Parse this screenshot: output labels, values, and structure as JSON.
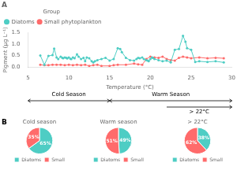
{
  "chart_data": [
    {
      "type": "line",
      "title": "A",
      "x_label": "Temperature (°C)",
      "y_label": "Pigment (μg L⁻¹)",
      "series": [
        {
          "name": "Diatoms",
          "color": "#4ECDC4",
          "x": [
            6.5,
            7.0,
            7.5,
            8.0,
            8.2,
            8.5,
            8.7,
            9.0,
            9.2,
            9.3,
            9.5,
            9.7,
            9.8,
            10.0,
            10.2,
            10.3,
            10.5,
            10.7,
            11.0,
            11.2,
            11.5,
            11.8,
            12.0,
            12.2,
            12.5,
            12.8,
            13.0,
            13.2,
            13.5,
            14.0,
            14.5,
            15.0,
            15.5,
            16.0,
            16.3,
            16.5,
            17.0,
            17.5,
            18.0,
            18.3,
            18.5,
            18.7,
            19.0,
            19.2,
            19.5,
            19.7,
            19.8,
            20.0,
            20.2,
            20.3,
            20.5,
            21.0,
            21.5,
            22.0,
            22.5,
            23.0,
            23.5,
            24.0,
            24.3,
            24.5,
            25.0,
            25.5,
            26.0,
            27.0,
            28.0,
            29.0
          ],
          "values": [
            0.5,
            0.1,
            0.48,
            0.52,
            0.8,
            0.42,
            0.35,
            0.45,
            0.4,
            0.38,
            0.42,
            0.4,
            0.37,
            0.42,
            0.36,
            0.35,
            0.42,
            0.38,
            0.55,
            0.45,
            0.35,
            0.4,
            0.25,
            0.42,
            0.38,
            0.25,
            0.2,
            0.25,
            0.3,
            0.35,
            0.4,
            0.28,
            0.35,
            0.82,
            0.78,
            0.65,
            0.4,
            0.3,
            0.28,
            0.35,
            0.4,
            0.38,
            0.42,
            0.35,
            0.3,
            0.28,
            0.25,
            0.35,
            0.42,
            0.4,
            0.35,
            0.3,
            0.25,
            0.28,
            0.2,
            0.75,
            0.78,
            1.35,
            1.1,
            0.82,
            0.75,
            0.22,
            0.25,
            0.22,
            0.25,
            0.2
          ]
        },
        {
          "name": "Small phytoplankton",
          "color": "#FF6B6B",
          "x": [
            6.5,
            7.0,
            7.5,
            8.0,
            8.5,
            9.0,
            9.5,
            10.0,
            10.5,
            11.0,
            11.5,
            12.0,
            12.5,
            13.0,
            13.5,
            14.0,
            15.0,
            15.5,
            16.0,
            17.0,
            18.0,
            18.5,
            19.0,
            19.5,
            20.0,
            20.5,
            21.0,
            21.5,
            22.0,
            22.5,
            23.0,
            23.5,
            24.0,
            24.5,
            25.0,
            26.0,
            27.0,
            28.0,
            29.0
          ],
          "values": [
            0.1,
            0.08,
            0.08,
            0.1,
            0.1,
            0.1,
            0.08,
            0.1,
            0.08,
            0.1,
            0.08,
            0.1,
            0.05,
            0.08,
            0.1,
            0.05,
            0.05,
            0.08,
            0.1,
            0.1,
            0.15,
            0.12,
            0.1,
            0.35,
            0.45,
            0.42,
            0.4,
            0.45,
            0.35,
            0.3,
            0.28,
            0.4,
            0.45,
            0.42,
            0.38,
            0.42,
            0.38,
            0.4,
            0.38
          ]
        }
      ],
      "xlim": [
        5,
        30
      ],
      "xticks": [
        5,
        10,
        15,
        20,
        25,
        30
      ],
      "ylim": [
        0,
        1.5
      ],
      "yticks": [
        {
          "value": 0,
          "label": "0.0"
        },
        0.5,
        {
          "value": 1,
          "label": "1.0"
        },
        1.5
      ],
      "grid": false,
      "legend": "upper left",
      "legend_title": "Group",
      "marker": "circle",
      "line_style": "solid",
      "annotations": [
        {
          "text": "Cold Season",
          "x": [
            5,
            15
          ],
          "marker": "double_arrow"
        },
        {
          "text": "Warm Season",
          "x": [
            15,
            30
          ],
          "marker": "double_arrow"
        },
        {
          "text": "> 22°C",
          "x": [
            22,
            30
          ],
          "marker": "arrow"
        }
      ]
    },
    {
      "type": "pie",
      "title": "Cold season",
      "categories": [
        "Diatoms",
        "Small"
      ],
      "values": [
        65,
        35
      ],
      "value_labels": [
        "65%",
        "35%"
      ],
      "colors": [
        "#4ECDC4",
        "#FF6B6B"
      ],
      "data_labels": true,
      "legend": "bottom",
      "annotations": [
        {
          "text": "B"
        }
      ]
    },
    {
      "type": "pie",
      "title": "Warm season",
      "categories": [
        "Diatoms",
        "Small"
      ],
      "values": [
        49,
        51
      ],
      "value_labels": [
        "49%",
        "51%"
      ],
      "colors": [
        "#4ECDC4",
        "#FF6B6B"
      ],
      "data_labels": true,
      "legend": "bottom"
    },
    {
      "type": "pie",
      "title": "> 22°C",
      "categories": [
        "Diatoms",
        "Small"
      ],
      "values": [
        38,
        62
      ],
      "value_labels": [
        "38%",
        "62%"
      ],
      "colors": [
        "#4ECDC4",
        "#FF6B6B"
      ],
      "data_labels": true,
      "legend": "bottom"
    }
  ]
}
